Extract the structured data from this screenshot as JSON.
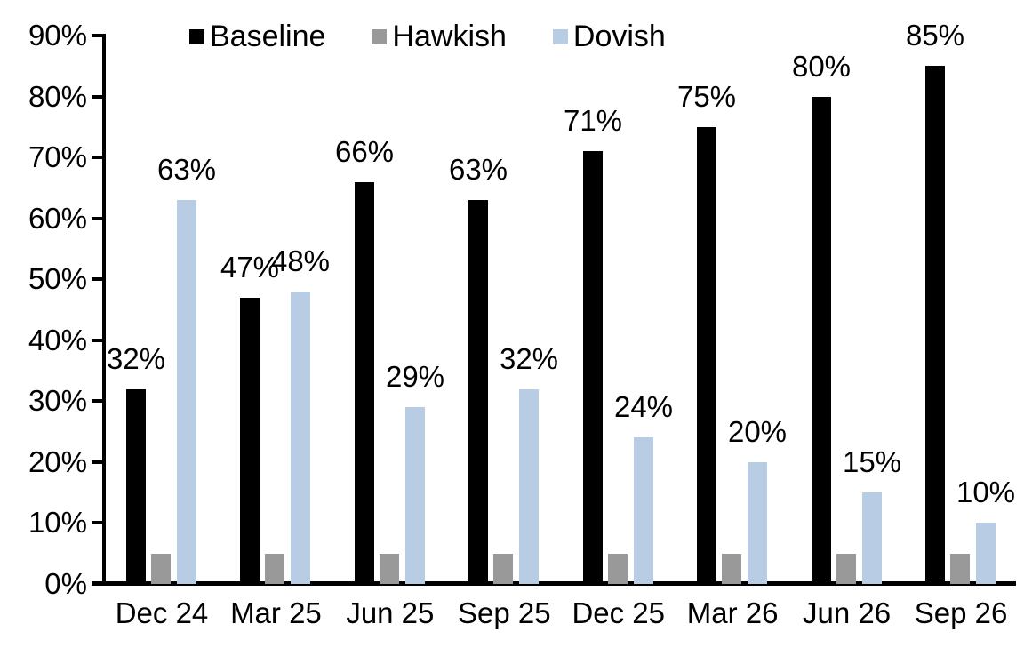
{
  "chart_data": {
    "type": "bar",
    "categories": [
      "Dec 24",
      "Mar 25",
      "Jun 25",
      "Sep 25",
      "Dec 25",
      "Mar 26",
      "Jun 26",
      "Sep 26"
    ],
    "series": [
      {
        "name": "Baseline",
        "color": "#000000",
        "values": [
          32,
          47,
          66,
          63,
          71,
          75,
          80,
          85
        ],
        "labels": [
          "32%",
          "47%",
          "66%",
          "63%",
          "71%",
          "75%",
          "80%",
          "85%"
        ]
      },
      {
        "name": "Hawkish",
        "color": "#999999",
        "values": [
          5,
          5,
          5,
          5,
          5,
          5,
          5,
          5
        ],
        "labels": [
          null,
          null,
          null,
          null,
          null,
          null,
          null,
          null
        ]
      },
      {
        "name": "Dovish",
        "color": "#B8CCE4",
        "values": [
          63,
          48,
          29,
          32,
          24,
          20,
          15,
          10
        ],
        "labels": [
          "63%",
          "48%",
          "29%",
          "32%",
          "24%",
          "20%",
          "15%",
          "10%"
        ]
      }
    ],
    "title": "",
    "xlabel": "",
    "ylabel": "",
    "ylim": [
      0,
      90
    ],
    "yticks": [
      "0%",
      "10%",
      "20%",
      "30%",
      "40%",
      "50%",
      "60%",
      "70%",
      "80%",
      "90%"
    ],
    "grid": false,
    "legend_position": "top",
    "axis_color": "#000000",
    "background_color": "#ffffff"
  }
}
